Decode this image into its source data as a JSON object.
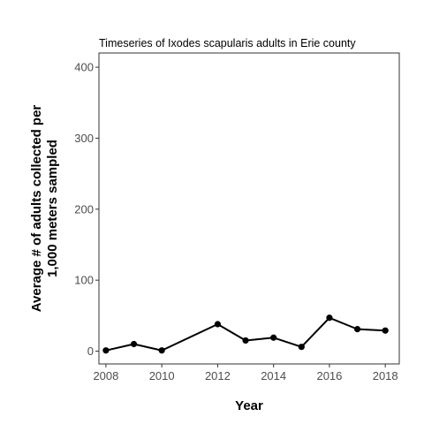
{
  "chart_data": {
    "type": "line",
    "title": "Timeseries of Ixodes scapularis adults in Erie county",
    "xlabel": "Year",
    "ylabel_lines": [
      "Average # of adults collected per",
      "1,000 meters sampled"
    ],
    "xlim": [
      2007.75,
      2018.5
    ],
    "ylim": [
      -18,
      420
    ],
    "xticks": [
      2008,
      2010,
      2012,
      2014,
      2016,
      2018
    ],
    "yticks": [
      0,
      100,
      200,
      300,
      400
    ],
    "grid": false,
    "series": [
      {
        "color": "#000000",
        "x": [
          2008,
          2009,
          2010,
          2012,
          2013,
          2014,
          2015,
          2016,
          2017,
          2018
        ],
        "y": [
          1,
          10,
          1,
          38,
          15,
          19,
          6,
          47,
          31,
          29
        ]
      }
    ]
  }
}
